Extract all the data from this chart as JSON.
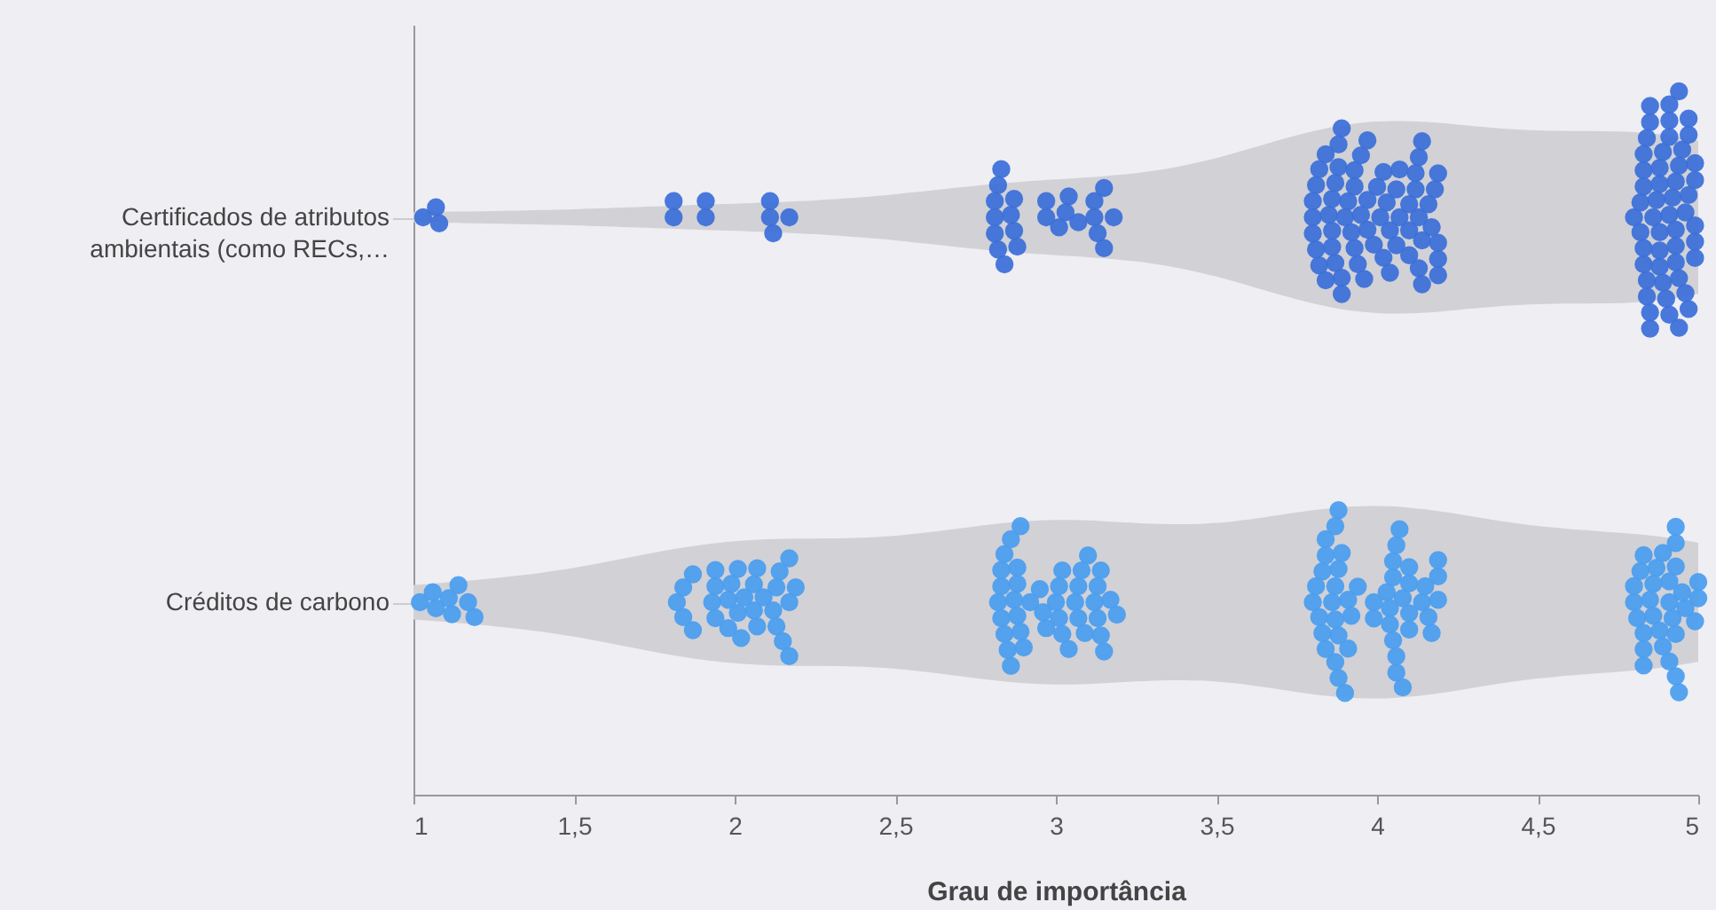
{
  "chart_data": {
    "type": "scatter",
    "orientation": "horizontal",
    "xlabel": "Grau de importância",
    "xlim": [
      1,
      5
    ],
    "xticks": [
      1,
      {
        "value": 1.5,
        "label": "1,5"
      },
      2,
      {
        "value": 2.5,
        "label": "2,5"
      },
      3,
      {
        "value": 3.5,
        "label": "3,5"
      },
      4,
      {
        "value": 4.5,
        "label": "4,5"
      },
      5
    ],
    "marker": "circle",
    "categories": [
      "Certificados de atributos ambientais (como RECs,…",
      "Créditos de carbono"
    ],
    "series": [
      {
        "color": "#3b6fd9",
        "x": [
          "Certificados de atributos ambientais (como RECs,…",
          "Certificados de atributos ambientais (como RECs,…",
          "Certificados de atributos ambientais (como RECs,…",
          "Certificados de atributos ambientais (como RECs,…",
          "Certificados de atributos ambientais (como RECs,…",
          "Certificados de atributos ambientais (como RECs,…",
          "Certificados de atributos ambientais (como RECs,…",
          "Certificados de atributos ambientais (como RECs,…",
          "Certificados de atributos ambientais (como RECs,…",
          "Certificados de atributos ambientais (como RECs,…",
          "Certificados de atributos ambientais (como RECs,…",
          "Certificados de atributos ambientais (como RECs,…",
          "Certificados de atributos ambientais (como RECs,…",
          "Certificados de atributos ambientais (como RECs,…",
          "Certificados de atributos ambientais (como RECs,…",
          "Certificados de atributos ambientais (como RECs,…",
          "Certificados de atributos ambientais (como RECs,…",
          "Certificados de atributos ambientais (como RECs,…",
          "Certificados de atributos ambientais (como RECs,…",
          "Certificados de atributos ambientais (como RECs,…",
          "Certificados de atributos ambientais (como RECs,…",
          "Certificados de atributos ambientais (como RECs,…",
          "Certificados de atributos ambientais (como RECs,…",
          "Certificados de atributos ambientais (como RECs,…",
          "Certificados de atributos ambientais (como RECs,…",
          "Certificados de atributos ambientais (como RECs,…",
          "Certificados de atributos ambientais (como RECs,…",
          "Certificados de atributos ambientais (como RECs,…",
          "Certificados de atributos ambientais (como RECs,…",
          "Certificados de atributos ambientais (como RECs,…",
          "Certificados de atributos ambientais (como RECs,…",
          "Certificados de atributos ambientais (como RECs,…",
          "Certificados de atributos ambientais (como RECs,…",
          "Certificados de atributos ambientais (como RECs,…",
          "Certificados de atributos ambientais (como RECs,…",
          "Certificados de atributos ambientais (como RECs,…",
          "Certificados de atributos ambientais (como RECs,…",
          "Certificados de atributos ambientais (como RECs,…",
          "Certificados de atributos ambientais (como RECs,…",
          "Certificados de atributos ambientais (como RECs,…",
          "Certificados de atributos ambientais (como RECs,…",
          "Certificados de atributos ambientais (como RECs,…",
          "Certificados de atributos ambientais (como RECs,…",
          "Certificados de atributos ambientais (como RECs,…",
          "Certificados de atributos ambientais (como RECs,…",
          "Certificados de atributos ambientais (como RECs,…",
          "Certificados de atributos ambientais (como RECs,…",
          "Certificados de atributos ambientais (como RECs,…",
          "Certificados de atributos ambientais (como RECs,…",
          "Certificados de atributos ambientais (como RECs,…",
          "Certificados de atributos ambientais (como RECs,…",
          "Certificados de atributos ambientais (como RECs,…",
          "Certificados de atributos ambientais (como RECs,…",
          "Certificados de atributos ambientais (como RECs,…",
          "Certificados de atributos ambientais (como RECs,…",
          "Certificados de atributos ambientais (como RECs,…",
          "Certificados de atributos ambientais (como RECs,…",
          "Certificados de atributos ambientais (como RECs,…",
          "Certificados de atributos ambientais (como RECs,…",
          "Certificados de atributos ambientais (como RECs,…",
          "Certificados de atributos ambientais (como RECs,…",
          "Certificados de atributos ambientais (como RECs,…",
          "Certificados de atributos ambientais (como RECs,…",
          "Certificados de atributos ambientais (como RECs,…",
          "Certificados de atributos ambientais (como RECs,…",
          "Certificados de atributos ambientais (como RECs,…",
          "Certificados de atributos ambientais (como RECs,…",
          "Certificados de atributos ambientais (como RECs,…",
          "Certificados de atributos ambientais (como RECs,…",
          "Certificados de atributos ambientais (como RECs,…",
          "Certificados de atributos ambientais (como RECs,…",
          "Certificados de atributos ambientais (como RECs,…",
          "Certificados de atributos ambientais (como RECs,…",
          "Certificados de atributos ambientais (como RECs,…",
          "Certificados de atributos ambientais (como RECs,…",
          "Certificados de atributos ambientais (como RECs,…",
          "Certificados de atributos ambientais (como RECs,…",
          "Certificados de atributos ambientais (como RECs,…",
          "Certificados de atributos ambientais (como RECs,…",
          "Certificados de atributos ambientais (como RECs,…",
          "Certificados de atributos ambientais (como RECs,…",
          "Certificados de atributos ambientais (como RECs,…",
          "Certificados de atributos ambientais (como RECs,…",
          "Certificados de atributos ambientais (como RECs,…",
          "Certificados de atributos ambientais (como RECs,…",
          "Certificados de atributos ambientais (como RECs,…",
          "Certificados de atributos ambientais (como RECs,…",
          "Certificados de atributos ambientais (como RECs,…",
          "Certificados de atributos ambientais (como RECs,…",
          "Certificados de atributos ambientais (como RECs,…",
          "Certificados de atributos ambientais (como RECs,…",
          "Certificados de atributos ambientais (como RECs,…",
          "Certificados de atributos ambientais (como RECs,…",
          "Certificados de atributos ambientais (como RECs,…",
          "Certificados de atributos ambientais (como RECs,…",
          "Certificados de atributos ambientais (como RECs,…",
          "Certificados de atributos ambientais (como RECs,…",
          "Certificados de atributos ambientais (como RECs,…",
          "Certificados de atributos ambientais (como RECs,…",
          "Certificados de atributos ambientais (como RECs,…",
          "Certificados de atributos ambientais (como RECs,…",
          "Certificados de atributos ambientais (como RECs,…",
          "Certificados de atributos ambientais (como RECs,…",
          "Certificados de atributos ambientais (como RECs,…",
          "Certificados de atributos ambientais (como RECs,…",
          "Certificados de atributos ambientais (como RECs,…",
          "Certificados de atributos ambientais (como RECs,…",
          "Certificados de atributos ambientais (como RECs,…",
          "Certificados de atributos ambientais (como RECs,…",
          "Certificados de atributos ambientais (como RECs,…",
          "Certificados de atributos ambientais (como RECs,…",
          "Certificados de atributos ambientais (como RECs,…",
          "Certificados de atributos ambientais (como RECs,…",
          "Certificados de atributos ambientais (como RECs,…",
          "Certificados de atributos ambientais (como RECs,…",
          "Certificados de atributos ambientais (como RECs,…",
          "Certificados de atributos ambientais (como RECs,…",
          "Certificados de atributos ambientais (como RECs,…",
          "Certificados de atributos ambientais (como RECs,…",
          "Certificados de atributos ambientais (como RECs,…",
          "Certificados de atributos ambientais (como RECs,…",
          "Certificados de atributos ambientais (como RECs,…",
          "Certificados de atributos ambientais (como RECs,…",
          "Certificados de atributos ambientais (como RECs,…",
          "Certificados de atributos ambientais (como RECs,…",
          "Certificados de atributos ambientais (como RECs,…",
          "Certificados de atributos ambientais (como RECs,…",
          "Certificados de atributos ambientais (como RECs,…",
          "Certificados de atributos ambientais (como RECs,…",
          "Certificados de atributos ambientais (como RECs,…",
          "Certificados de atributos ambientais (como RECs,…",
          "Certificados de atributos ambientais (como RECs,…",
          "Certificados de atributos ambientais (como RECs,…",
          "Certificados de atributos ambientais (como RECs,…",
          "Certificados de atributos ambientais (como RECs,…",
          "Certificados de atributos ambientais (como RECs,…",
          "Certificados de atributos ambientais (como RECs,…",
          "Certificados de atributos ambientais (como RECs,…",
          "Certificados de atributos ambientais (como RECs,…",
          "Certificados de atributos ambientais (como RECs,…",
          "Certificados de atributos ambientais (como RECs,…",
          "Certificados de atributos ambientais (como RECs,…",
          "Certificados de atributos ambientais (como RECs,…",
          "Certificados de atributos ambientais (como RECs,…",
          "Certificados de atributos ambientais (como RECs,…",
          "Certificados de atributos ambientais (como RECs,…",
          "Certificados de atributos ambientais (como RECs,…",
          "Certificados de atributos ambientais (como RECs,…"
        ],
        "values": [
          1.03,
          1.07,
          1.08,
          1.81,
          1.81,
          1.91,
          1.91,
          2.12,
          2.11,
          2.17,
          2.11,
          2.81,
          2.82,
          2.81,
          2.82,
          2.81,
          2.83,
          2.84,
          2.87,
          2.87,
          2.86,
          2.88,
          2.97,
          2.97,
          3.01,
          3.03,
          3.04,
          3.07,
          3.12,
          3.13,
          3.15,
          3.18,
          3.15,
          3.12,
          3.84,
          3.91,
          3.87,
          3.89,
          3.95,
          3.86,
          3.96,
          3.8,
          3.85,
          3.93,
          3.8,
          3.92,
          3.82,
          3.88,
          3.94,
          3.99,
          3.82,
          3.89,
          4,
          3.8,
          3.86,
          3.93,
          4.02,
          3.84,
          3.9,
          3.97,
          3.81,
          3.93,
          4.01,
          3.81,
          3.89,
          3.95,
          3.88,
          3.97,
          3.87,
          3.97,
          3.86,
          4.1,
          4.13,
          4.04,
          4.13,
          4.18,
          4.03,
          4.1,
          4.02,
          4.14,
          4.19,
          4.07,
          4.17,
          4.06,
          4.13,
          4.19,
          4.16,
          4.06,
          4.12,
          4.19,
          4.04,
          4.12,
          4.19,
          4.07,
          4.14,
          4.1,
          4.14,
          4.94,
          4.84,
          4.93,
          4.86,
          4.94,
          4.89,
          4.94,
          4.82,
          4.89,
          4.96,
          4.85,
          4.91,
          4.88,
          4.99,
          4.83,
          4.91,
          4.99,
          4.82,
          4.88,
          4.97,
          4.85,
          4.94,
          4.88,
          4.8,
          4.85,
          4.93,
          4.99,
          4.84,
          4.9,
          4.96,
          4.87,
          4.93,
          4.99,
          4.83,
          4.97,
          4.88,
          4.84,
          4.91,
          4.97,
          4.83,
          4.91,
          4.99,
          4.83,
          4.91,
          4.97,
          4.83,
          4.93,
          4.88,
          4.85,
          4.92,
          4.95
        ]
      },
      {
        "color": "#4a9ef0",
        "x": [
          "Créditos de carbono",
          "Créditos de carbono",
          "Créditos de carbono",
          "Créditos de carbono",
          "Créditos de carbono",
          "Créditos de carbono",
          "Créditos de carbono",
          "Créditos de carbono",
          "Créditos de carbono",
          "Créditos de carbono",
          "Créditos de carbono",
          "Créditos de carbono",
          "Créditos de carbono",
          "Créditos de carbono",
          "Créditos de carbono",
          "Créditos de carbono",
          "Créditos de carbono",
          "Créditos de carbono",
          "Créditos de carbono",
          "Créditos de carbono",
          "Créditos de carbono",
          "Créditos de carbono",
          "Créditos de carbono",
          "Créditos de carbono",
          "Créditos de carbono",
          "Créditos de carbono",
          "Créditos de carbono",
          "Créditos de carbono",
          "Créditos de carbono",
          "Créditos de carbono",
          "Créditos de carbono",
          "Créditos de carbono",
          "Créditos de carbono",
          "Créditos de carbono",
          "Créditos de carbono",
          "Créditos de carbono",
          "Créditos de carbono",
          "Créditos de carbono",
          "Créditos de carbono",
          "Créditos de carbono",
          "Créditos de carbono",
          "Créditos de carbono",
          "Créditos de carbono",
          "Créditos de carbono",
          "Créditos de carbono",
          "Créditos de carbono",
          "Créditos de carbono",
          "Créditos de carbono",
          "Créditos de carbono",
          "Créditos de carbono",
          "Créditos de carbono",
          "Créditos de carbono",
          "Créditos de carbono",
          "Créditos de carbono",
          "Créditos de carbono",
          "Créditos de carbono",
          "Créditos de carbono",
          "Créditos de carbono",
          "Créditos de carbono",
          "Créditos de carbono",
          "Créditos de carbono",
          "Créditos de carbono",
          "Créditos de carbono",
          "Créditos de carbono",
          "Créditos de carbono",
          "Créditos de carbono",
          "Créditos de carbono",
          "Créditos de carbono",
          "Créditos de carbono",
          "Créditos de carbono",
          "Créditos de carbono",
          "Créditos de carbono",
          "Créditos de carbono",
          "Créditos de carbono",
          "Créditos de carbono",
          "Créditos de carbono",
          "Créditos de carbono",
          "Créditos de carbono",
          "Créditos de carbono",
          "Créditos de carbono",
          "Créditos de carbono",
          "Créditos de carbono",
          "Créditos de carbono",
          "Créditos de carbono",
          "Créditos de carbono",
          "Créditos de carbono",
          "Créditos de carbono",
          "Créditos de carbono",
          "Créditos de carbono",
          "Créditos de carbono",
          "Créditos de carbono",
          "Créditos de carbono",
          "Créditos de carbono",
          "Créditos de carbono",
          "Créditos de carbono",
          "Créditos de carbono",
          "Créditos de carbono",
          "Créditos de carbono",
          "Créditos de carbono",
          "Créditos de carbono",
          "Créditos de carbono",
          "Créditos de carbono",
          "Créditos de carbono",
          "Créditos de carbono",
          "Créditos de carbono",
          "Créditos de carbono",
          "Créditos de carbono",
          "Créditos de carbono",
          "Créditos de carbono",
          "Créditos de carbono",
          "Créditos de carbono",
          "Créditos de carbono",
          "Créditos de carbono",
          "Créditos de carbono",
          "Créditos de carbono",
          "Créditos de carbono",
          "Créditos de carbono",
          "Créditos de carbono",
          "Créditos de carbono",
          "Créditos de carbono",
          "Créditos de carbono",
          "Créditos de carbono",
          "Créditos de carbono",
          "Créditos de carbono",
          "Créditos de carbono",
          "Créditos de carbono",
          "Créditos de carbono",
          "Créditos de carbono",
          "Créditos de carbono",
          "Créditos de carbono",
          "Créditos de carbono",
          "Créditos de carbono",
          "Créditos de carbono",
          "Créditos de carbono",
          "Créditos de carbono",
          "Créditos de carbono",
          "Créditos de carbono",
          "Créditos de carbono",
          "Créditos de carbono",
          "Créditos de carbono",
          "Créditos de carbono",
          "Créditos de carbono",
          "Créditos de carbono",
          "Créditos de carbono",
          "Créditos de carbono",
          "Créditos de carbono",
          "Créditos de carbono",
          "Créditos de carbono",
          "Créditos de carbono",
          "Créditos de carbono",
          "Créditos de carbono",
          "Créditos de carbono",
          "Créditos de carbono",
          "Créditos de carbono",
          "Créditos de carbono",
          "Créditos de carbono"
        ],
        "values": [
          1.02,
          1.06,
          1.11,
          1.14,
          1.19,
          1.12,
          1.07,
          1.17,
          1.84,
          1.87,
          1.84,
          1.87,
          1.82,
          1.94,
          1.98,
          2.01,
          1.94,
          1.93,
          1.99,
          2.03,
          2.06,
          2.02,
          2.07,
          1.98,
          1.94,
          2.07,
          2.01,
          2.06,
          2.09,
          2.13,
          2.17,
          2.17,
          2.19,
          2.12,
          2.17,
          2.15,
          2.13,
          2.14,
          2.85,
          2.84,
          2.9,
          2.87,
          2.82,
          2.88,
          2.86,
          2.83,
          2.88,
          2.83,
          2.88,
          2.83,
          2.89,
          2.86,
          2.84,
          2.89,
          2.92,
          2.97,
          2.96,
          2.95,
          3.01,
          3.02,
          3.04,
          3.06,
          3.02,
          3,
          3.01,
          3.07,
          3.07,
          3.1,
          3.08,
          3.15,
          3.09,
          3.17,
          3.13,
          3.19,
          3.14,
          3.14,
          3.13,
          3.12,
          3.88,
          3.88,
          3.88,
          3.83,
          3.87,
          3.8,
          3.86,
          3.94,
          3.84,
          3.9,
          3.82,
          3.91,
          3.84,
          3.92,
          3.84,
          3.91,
          3.88,
          3.83,
          3.87,
          3.81,
          3.87,
          3.89,
          3.87,
          4.05,
          4.1,
          4.08,
          4.06,
          4.03,
          4.1,
          4.04,
          4.1,
          4.17,
          4.04,
          4.16,
          3.99,
          4.05,
          4.1,
          4.19,
          3.99,
          4.05,
          4.14,
          4.19,
          4.07,
          4.15,
          4.19,
          4.06,
          4.06,
          4.08,
          4.92,
          4.91,
          4.91,
          4.83,
          4.8,
          4.86,
          4.93,
          4.83,
          4.91,
          4.87,
          4.93,
          5,
          4.8,
          4.85,
          4.96,
          4.81,
          4.86,
          4.93,
          5,
          4.82,
          4.88,
          4.99,
          4.83,
          4.89,
          4.94,
          4.95,
          4.83,
          4.89,
          4.93,
          4.93
        ]
      }
    ]
  }
}
